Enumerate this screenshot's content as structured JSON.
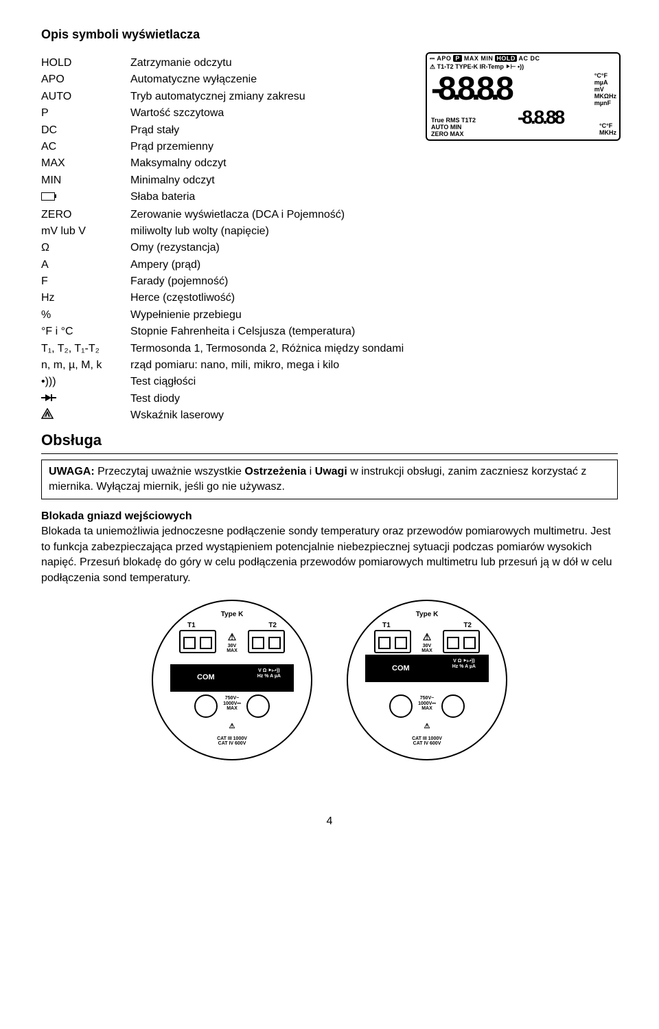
{
  "title": "Opis symboli wyświetlacza",
  "rows": [
    {
      "sym": "HOLD",
      "desc": "Zatrzymanie odczytu"
    },
    {
      "sym": "APO",
      "desc": "Automatyczne wyłączenie"
    },
    {
      "sym": "AUTO",
      "desc": "Tryb automatycznej zmiany zakresu"
    },
    {
      "sym": "P",
      "desc": "Wartość szczytowa"
    },
    {
      "sym": "DC",
      "desc": "Prąd stały"
    },
    {
      "sym": "AC",
      "desc": "Prąd przemienny"
    },
    {
      "sym": "MAX",
      "desc": "Maksymalny odczyt"
    },
    {
      "sym": "MIN",
      "desc": "Minimalny odczyt"
    },
    {
      "sym": "__battery__",
      "desc": "Słaba bateria"
    },
    {
      "sym": "ZERO",
      "desc": "Zerowanie wyświetlacza (DCA i Pojemność)"
    },
    {
      "sym": "mV lub V",
      "desc": "miliwolty lub wolty (napięcie)"
    },
    {
      "sym": "Ω",
      "desc": "Omy (rezystancja)"
    },
    {
      "sym": "A",
      "desc": "Ampery (prąd)"
    },
    {
      "sym": "F",
      "desc": "Farady (pojemność)"
    },
    {
      "sym": "Hz",
      "desc": "Herce (częstotliwość)"
    },
    {
      "sym": "%",
      "desc": "Wypełnienie przebiegu"
    },
    {
      "sym": "°F i °C",
      "desc": "Stopnie Fahrenheita i Celsjusza (temperatura)"
    },
    {
      "sym": "T₁, T₂, T₁-T₂",
      "desc": "Termosonda 1, Termosonda 2, Różnica między sondami"
    },
    {
      "sym": "n, m, µ, M, k",
      "desc": "rząd pomiaru: nano, mili, mikro, mega i kilo"
    },
    {
      "sym": "•)))",
      "desc": "Test ciągłości"
    },
    {
      "sym": "__diode__",
      "desc": "Test diody"
    },
    {
      "sym": "__laser__",
      "desc": "Wskaźnik laserowy"
    }
  ],
  "obsluga": "Obsługa",
  "uwaga_label": "UWAGA:",
  "uwaga_text1": " Przeczytaj uważnie wszystkie ",
  "uwaga_bold1": "Ostrzeżenia",
  "uwaga_mid": " i ",
  "uwaga_bold2": "Uwagi",
  "uwaga_text2": " w instrukcji obsługi, zanim zaczniesz korzystać z miernika. Wyłączaj miernik, jeśli go nie używasz.",
  "blokada_h": "Blokada gniazd wejściowych",
  "blokada_p": "Blokada ta uniemożliwia jednoczesne podłączenie sondy temperatury oraz przewodów pomiarowych multimetru. Jest to funkcja zabezpieczająca przed wystąpieniem potencjalnie niebezpiecznej sytuacji podczas pomiarów wysokich napięć. Przesuń blokadę do góry w celu podłączenia przewodów pomiarowych multimetru lub przesuń ją w dół w celu podłączenia sond temperatury.",
  "lcd": {
    "top1_pre": "⎓ APO ",
    "top1_p": "P",
    "top1_mid": " MAX MIN ",
    "top1_hold": "HOLD",
    "top1_post": " AC DC",
    "top2": "⚠ T1-T2 TYPE-K IR-Temp ⯈⊢ •))",
    "units1": "°C°F\nmµA\nmV\nMKΩHz\nmµnF",
    "digits": "-8.8.8.8",
    "btm_left": "True RMS T1T2\nAUTO  MIN\nZERO  MAX",
    "digits2": "-8.8.88",
    "btm_right": "°C°F\nMKHz"
  },
  "jack": {
    "typek": "Type K",
    "t1": "T1",
    "t2": "T2",
    "warn": "⚠",
    "vmax": "30V\nMAX",
    "com": "COM",
    "vohm": "V Ω ⯈⊢•))\nHz % A µA",
    "v750": "750V~\n1000V⎓\nMAX",
    "cat": "CAT III 1000V\nCAT IV 600V",
    "warn2": "⚠"
  },
  "page": "4"
}
